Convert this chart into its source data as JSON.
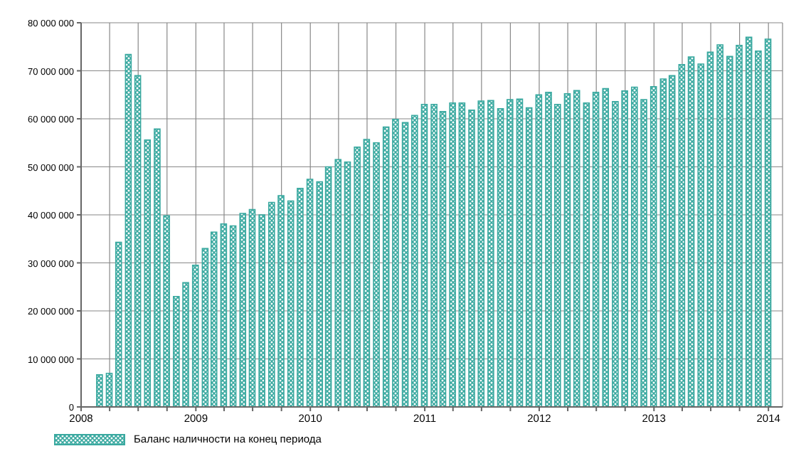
{
  "chart_data": {
    "type": "bar",
    "x": [
      "2008-02-29",
      "2008-03-31",
      "2008-04-30",
      "2008-05-31",
      "2008-06-30",
      "2008-07-31",
      "2008-08-31",
      "2008-09-30",
      "2008-10-31",
      "2008-11-30",
      "2008-12-31",
      "2009-01-31",
      "2009-02-28",
      "2009-03-31",
      "2009-04-30",
      "2009-05-31",
      "2009-06-30",
      "2009-07-31",
      "2009-08-31",
      "2009-09-30",
      "2009-10-31",
      "2009-11-30",
      "2009-12-31",
      "2010-01-31",
      "2010-02-28",
      "2010-03-31",
      "2010-04-30",
      "2010-05-31",
      "2010-06-30",
      "2010-07-31",
      "2010-08-31",
      "2010-09-30",
      "2010-10-31",
      "2010-11-30",
      "2010-12-31",
      "2011-01-31",
      "2011-02-28",
      "2011-03-31",
      "2011-04-30",
      "2011-05-31",
      "2011-06-30",
      "2011-07-31",
      "2011-08-31",
      "2011-09-30",
      "2011-10-31",
      "2011-11-30",
      "2011-12-31",
      "2012-01-31",
      "2012-02-29",
      "2012-03-31",
      "2012-04-30",
      "2012-05-31",
      "2012-06-30",
      "2012-07-31",
      "2012-08-31",
      "2012-09-30",
      "2012-10-31",
      "2012-11-30",
      "2012-12-31",
      "2013-01-31",
      "2013-02-28",
      "2013-03-31",
      "2013-04-30",
      "2013-05-31",
      "2013-06-30",
      "2013-07-31",
      "2013-08-31",
      "2013-09-30",
      "2013-10-31",
      "2013-11-30",
      "2013-12-31"
    ],
    "series": [
      {
        "name": "Баланс наличности на конец периода",
        "color": "#3aa9a0",
        "values": [
          6700000,
          7000000,
          34300000,
          73400000,
          69000000,
          55600000,
          57900000,
          39800000,
          23000000,
          25900000,
          29500000,
          33000000,
          36400000,
          38100000,
          37700000,
          40300000,
          41100000,
          40000000,
          42600000,
          44000000,
          42900000,
          45500000,
          47400000,
          46900000,
          50000000,
          51500000,
          51000000,
          54100000,
          55700000,
          55000000,
          58300000,
          59900000,
          59200000,
          60700000,
          63000000,
          63000000,
          61500000,
          63300000,
          63300000,
          61800000,
          63700000,
          63800000,
          62100000,
          64000000,
          64100000,
          62300000,
          65000000,
          65500000,
          63000000,
          65200000,
          65900000,
          63300000,
          65500000,
          66300000,
          63600000,
          65800000,
          66600000,
          64000000,
          66700000,
          68300000,
          69000000,
          71300000,
          72900000,
          71400000,
          73900000,
          75400000,
          73000000,
          75300000,
          77000000,
          74100000,
          76600000
        ]
      }
    ],
    "xlim": [
      "2008-01-01",
      "2014-02-15"
    ],
    "xticks": [
      {
        "value": "2008-01-01",
        "label": "2008"
      },
      {
        "value": "2008-04-01",
        "label": null
      },
      {
        "value": "2008-07-01",
        "label": null
      },
      {
        "value": "2008-10-01",
        "label": null
      },
      {
        "value": "2009-01-01",
        "label": "2009"
      },
      {
        "value": "2009-04-01",
        "label": null
      },
      {
        "value": "2009-07-01",
        "label": null
      },
      {
        "value": "2009-10-01",
        "label": null
      },
      {
        "value": "2010-01-01",
        "label": "2010"
      },
      {
        "value": "2010-04-01",
        "label": null
      },
      {
        "value": "2010-07-01",
        "label": null
      },
      {
        "value": "2010-10-01",
        "label": null
      },
      {
        "value": "2011-01-01",
        "label": "2011"
      },
      {
        "value": "2011-04-01",
        "label": null
      },
      {
        "value": "2011-07-01",
        "label": null
      },
      {
        "value": "2011-10-01",
        "label": null
      },
      {
        "value": "2012-01-01",
        "label": "2012"
      },
      {
        "value": "2012-04-01",
        "label": null
      },
      {
        "value": "2012-07-01",
        "label": null
      },
      {
        "value": "2012-10-01",
        "label": null
      },
      {
        "value": "2013-01-01",
        "label": "2013"
      },
      {
        "value": "2013-04-01",
        "label": null
      },
      {
        "value": "2013-07-01",
        "label": null
      },
      {
        "value": "2013-10-01",
        "label": null
      },
      {
        "value": "2014-01-01",
        "label": "2014"
      }
    ],
    "ylim": [
      0,
      80000000
    ],
    "yticks": [
      {
        "value": 0,
        "label": "0"
      },
      {
        "value": 10000000,
        "label": "10 000 000"
      },
      {
        "value": 20000000,
        "label": "20 000 000"
      },
      {
        "value": 30000000,
        "label": "30 000 000"
      },
      {
        "value": 40000000,
        "label": "40 000 000"
      },
      {
        "value": 50000000,
        "label": "50 000 000"
      },
      {
        "value": 60000000,
        "label": "60 000 000"
      },
      {
        "value": 70000000,
        "label": "70 000 000"
      },
      {
        "value": 80000000,
        "label": "80 000 000"
      }
    ],
    "grid": true,
    "legend": "bottom left"
  }
}
